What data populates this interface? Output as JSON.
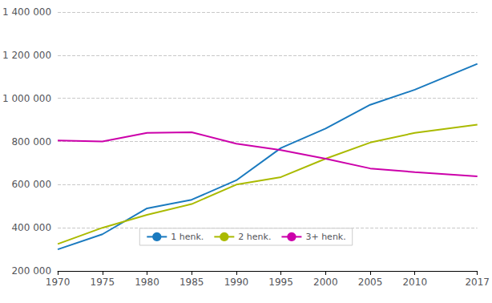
{
  "chart_data": {
    "type": "line",
    "x": [
      1970,
      1975,
      1980,
      1985,
      1990,
      1995,
      2000,
      2005,
      2010,
      2017
    ],
    "series": [
      {
        "name": "1 henk.",
        "color": "#1a7abf",
        "values": [
          300000,
          370000,
          490000,
          530000,
          620000,
          770000,
          860000,
          970000,
          1040000,
          1160000
        ]
      },
      {
        "name": "2 henk.",
        "color": "#aaba00",
        "values": [
          325000,
          400000,
          460000,
          510000,
          600000,
          635000,
          720000,
          795000,
          840000,
          878000
        ]
      },
      {
        "name": "3+ henk.",
        "color": "#cc00aa",
        "values": [
          805000,
          800000,
          840000,
          843000,
          790000,
          760000,
          720000,
          675000,
          658000,
          638000
        ]
      }
    ],
    "xlim": [
      1970,
      2017
    ],
    "xticks": [
      1970,
      1975,
      1980,
      1985,
      1990,
      1995,
      2000,
      2005,
      2010,
      2017
    ],
    "ylim": [
      200000,
      1400000
    ],
    "yticks": [
      {
        "value": 200000,
        "label": "200 000"
      },
      {
        "value": 400000,
        "label": "400 000"
      },
      {
        "value": 600000,
        "label": "600 000"
      },
      {
        "value": 800000,
        "label": "800 000"
      },
      {
        "value": 1000000,
        "label": "1 000 000"
      },
      {
        "value": 1200000,
        "label": "1 200 000"
      },
      {
        "value": 1400000,
        "label": "1 400 000"
      }
    ],
    "grid": true,
    "legend": "bottom"
  }
}
